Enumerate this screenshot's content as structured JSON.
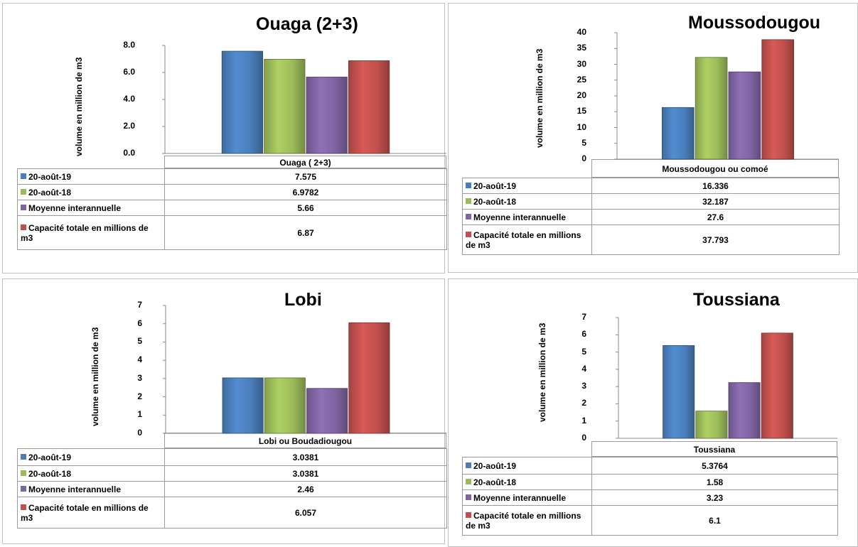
{
  "legend_labels": [
    "20-août-19",
    "20-août-18",
    "Moyenne interannuelle",
    "Capacité totale en millions de m3"
  ],
  "colors": [
    "#4A7EBB",
    "#9BBB59",
    "#8064A2",
    "#C0504D"
  ],
  "ylabel": "volume en million de m3",
  "chart_data": [
    {
      "type": "bar",
      "title": "Ouaga (2+3)",
      "categories": [
        "Ouaga ( 2+3)"
      ],
      "ylabel": "volume en million de m3",
      "ylim": [
        0,
        8
      ],
      "yticks": [
        "0.0",
        "2.0",
        "4.0",
        "6.0",
        "8.0"
      ],
      "series": [
        {
          "name": "20-août-19",
          "values": [
            7.575
          ],
          "label": "7.575"
        },
        {
          "name": "20-août-18",
          "values": [
            6.9782
          ],
          "label": "6.9782"
        },
        {
          "name": "Moyenne interannuelle",
          "values": [
            5.66
          ],
          "label": "5.66"
        },
        {
          "name": "Capacité totale en millions de m3",
          "values": [
            6.87
          ],
          "label": "6.87"
        }
      ]
    },
    {
      "type": "bar",
      "title": "Moussodougou",
      "categories": [
        "Moussodougou ou comoé"
      ],
      "ylabel": "volume en million de m3",
      "ylim": [
        0,
        40
      ],
      "yticks": [
        "0",
        "5",
        "10",
        "15",
        "20",
        "25",
        "30",
        "35",
        "40"
      ],
      "series": [
        {
          "name": "20-août-19",
          "values": [
            16.336
          ],
          "label": "16.336"
        },
        {
          "name": "20-août-18",
          "values": [
            32.187
          ],
          "label": "32.187"
        },
        {
          "name": "Moyenne interannuelle",
          "values": [
            27.6
          ],
          "label": "27.6"
        },
        {
          "name": "Capacité totale en millions de m3",
          "values": [
            37.793
          ],
          "label": "37.793"
        }
      ]
    },
    {
      "type": "bar",
      "title": "Lobi",
      "categories": [
        "Lobi ou Boudadiougou"
      ],
      "ylabel": "volume en million de m3",
      "ylim": [
        0,
        7
      ],
      "yticks": [
        "0",
        "1",
        "2",
        "3",
        "4",
        "5",
        "6",
        "7"
      ],
      "series": [
        {
          "name": "20-août-19",
          "values": [
            3.0381
          ],
          "label": "3.0381"
        },
        {
          "name": "20-août-18",
          "values": [
            3.0381
          ],
          "label": "3.0381"
        },
        {
          "name": "Moyenne interannuelle",
          "values": [
            2.46
          ],
          "label": "2.46"
        },
        {
          "name": "Capacité totale en millions de m3",
          "values": [
            6.057
          ],
          "label": "6.057"
        }
      ]
    },
    {
      "type": "bar",
      "title": "Toussiana",
      "categories": [
        "Toussiana"
      ],
      "ylabel": "volume en million de m3",
      "ylim": [
        0,
        7
      ],
      "yticks": [
        "0",
        "1",
        "2",
        "3",
        "4",
        "5",
        "6",
        "7"
      ],
      "series": [
        {
          "name": "20-août-19",
          "values": [
            5.3764
          ],
          "label": "5.3764"
        },
        {
          "name": "20-août-18",
          "values": [
            1.58
          ],
          "label": "1.58"
        },
        {
          "name": "Moyenne interannuelle",
          "values": [
            3.23
          ],
          "label": "3.23"
        },
        {
          "name": "Capacité totale en millions de m3",
          "values": [
            6.1
          ],
          "label": "6.1"
        }
      ]
    }
  ]
}
